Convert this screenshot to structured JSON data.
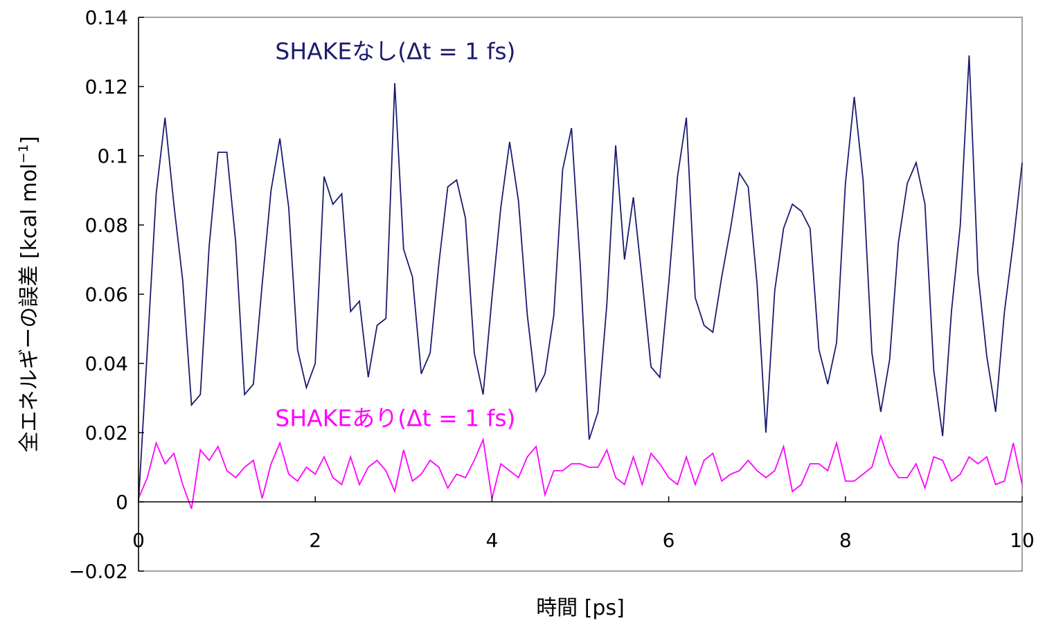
{
  "chart_data": {
    "type": "line",
    "xlabel": "時間 [ps]",
    "ylabel": {
      "main": "全エネルギーの誤差 [kcal mol",
      "sup": "−1",
      "end": "]"
    },
    "xlim": [
      0,
      10
    ],
    "ylim": [
      -0.02,
      0.14
    ],
    "x_ticks": [
      "0",
      "2",
      "4",
      "6",
      "8",
      "10"
    ],
    "y_ticks": [
      "−0.02",
      "0",
      "0.02",
      "0.04",
      "0.06",
      "0.08",
      "0.1",
      "0.12",
      "0.14"
    ],
    "grid": false,
    "x": [
      0.0,
      0.1,
      0.2,
      0.3,
      0.4,
      0.5,
      0.6,
      0.7,
      0.8,
      0.9,
      1.0,
      1.1,
      1.2,
      1.3,
      1.4,
      1.5,
      1.6,
      1.7,
      1.8,
      1.9,
      2.0,
      2.1,
      2.2,
      2.3,
      2.4,
      2.5,
      2.6,
      2.7,
      2.8,
      2.9,
      3.0,
      3.1,
      3.2,
      3.3,
      3.4,
      3.5,
      3.6,
      3.7,
      3.8,
      3.9,
      4.0,
      4.1,
      4.2,
      4.3,
      4.4,
      4.5,
      4.6,
      4.7,
      4.8,
      4.9,
      5.0,
      5.1,
      5.2,
      5.3,
      5.4,
      5.5,
      5.6,
      5.7,
      5.8,
      5.9,
      6.0,
      6.1,
      6.2,
      6.3,
      6.4,
      6.5,
      6.6,
      6.7,
      6.8,
      6.9,
      7.0,
      7.1,
      7.2,
      7.3,
      7.4,
      7.5,
      7.6,
      7.7,
      7.8,
      7.9,
      8.0,
      8.1,
      8.2,
      8.3,
      8.4,
      8.5,
      8.6,
      8.7,
      8.8,
      8.9,
      9.0,
      9.1,
      9.2,
      9.3,
      9.4,
      9.5,
      9.6,
      9.7,
      9.8,
      9.9,
      10.0
    ],
    "series": [
      {
        "name": "SHAKEなし(Δt = 1 fs)",
        "color": "#1b1b6e",
        "values": [
          0.0,
          0.044,
          0.089,
          0.111,
          0.086,
          0.064,
          0.028,
          0.031,
          0.074,
          0.101,
          0.101,
          0.075,
          0.031,
          0.034,
          0.063,
          0.09,
          0.105,
          0.085,
          0.044,
          0.033,
          0.04,
          0.094,
          0.086,
          0.089,
          0.055,
          0.058,
          0.036,
          0.051,
          0.053,
          0.121,
          0.073,
          0.065,
          0.037,
          0.043,
          0.069,
          0.091,
          0.093,
          0.082,
          0.043,
          0.031,
          0.059,
          0.085,
          0.104,
          0.087,
          0.054,
          0.032,
          0.037,
          0.054,
          0.096,
          0.108,
          0.068,
          0.018,
          0.026,
          0.057,
          0.103,
          0.07,
          0.088,
          0.064,
          0.039,
          0.036,
          0.063,
          0.094,
          0.111,
          0.059,
          0.051,
          0.049,
          0.065,
          0.079,
          0.095,
          0.091,
          0.063,
          0.02,
          0.061,
          0.079,
          0.086,
          0.084,
          0.079,
          0.044,
          0.034,
          0.046,
          0.092,
          0.117,
          0.093,
          0.043,
          0.026,
          0.041,
          0.075,
          0.092,
          0.098,
          0.086,
          0.038,
          0.019,
          0.055,
          0.08,
          0.129,
          0.066,
          0.042,
          0.026,
          0.055,
          0.075,
          0.098
        ]
      },
      {
        "name": "SHAKEあり(Δt = 1 fs)",
        "color": "#ff00ff",
        "values": [
          0.001,
          0.007,
          0.017,
          0.011,
          0.014,
          0.005,
          -0.002,
          0.015,
          0.012,
          0.016,
          0.009,
          0.007,
          0.01,
          0.012,
          0.001,
          0.011,
          0.017,
          0.008,
          0.006,
          0.01,
          0.008,
          0.013,
          0.007,
          0.005,
          0.013,
          0.005,
          0.01,
          0.012,
          0.009,
          0.003,
          0.015,
          0.006,
          0.008,
          0.012,
          0.01,
          0.004,
          0.008,
          0.007,
          0.012,
          0.018,
          0.001,
          0.011,
          0.009,
          0.007,
          0.013,
          0.016,
          0.002,
          0.009,
          0.009,
          0.011,
          0.011,
          0.01,
          0.01,
          0.015,
          0.007,
          0.005,
          0.013,
          0.005,
          0.014,
          0.011,
          0.007,
          0.005,
          0.013,
          0.005,
          0.012,
          0.014,
          0.006,
          0.008,
          0.009,
          0.012,
          0.009,
          0.007,
          0.009,
          0.016,
          0.003,
          0.005,
          0.011,
          0.011,
          0.009,
          0.017,
          0.006,
          0.006,
          0.008,
          0.01,
          0.019,
          0.011,
          0.007,
          0.007,
          0.011,
          0.004,
          0.013,
          0.012,
          0.006,
          0.008,
          0.013,
          0.011,
          0.013,
          0.005,
          0.006,
          0.017,
          0.005
        ]
      }
    ]
  }
}
